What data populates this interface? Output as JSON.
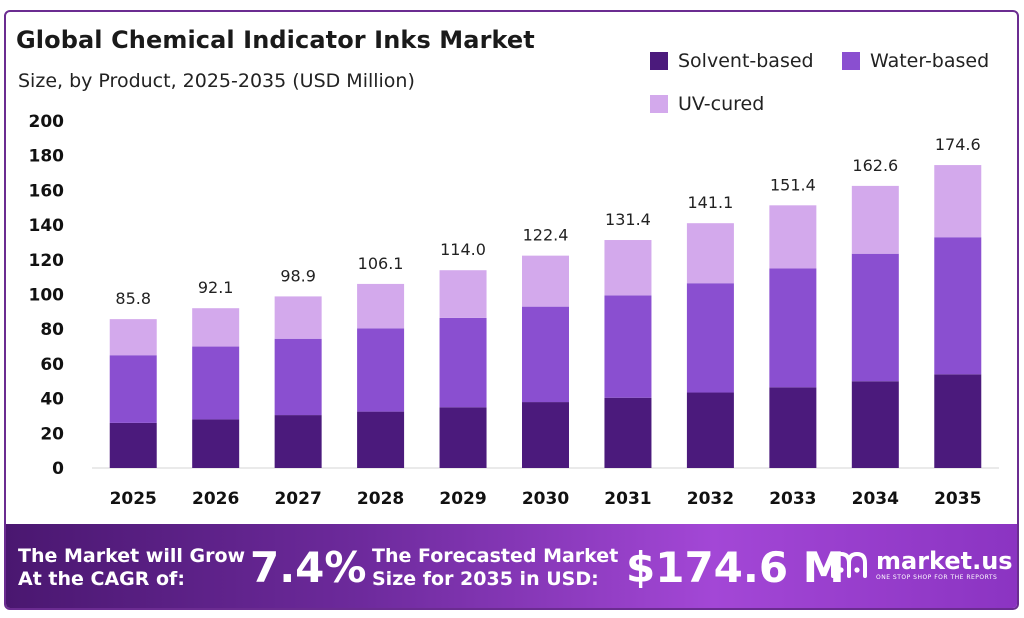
{
  "header": {
    "title": "Global Chemical Indicator Inks Market",
    "subtitle": "Size, by Product, 2025-2035 (USD Million)"
  },
  "legend": [
    {
      "label": "Solvent-based",
      "color": "#4b1a7c"
    },
    {
      "label": "Water-based",
      "color": "#8a4fd0"
    },
    {
      "label": "UV-cured",
      "color": "#d3a9ec"
    }
  ],
  "chart_data": {
    "type": "bar",
    "stacked": true,
    "title": "Global Chemical Indicator Inks Market",
    "subtitle": "Size, by Product, 2025-2035 (USD Million)",
    "categories": [
      "2025",
      "2026",
      "2027",
      "2028",
      "2029",
      "2030",
      "2031",
      "2032",
      "2033",
      "2034",
      "2035"
    ],
    "series": [
      {
        "name": "Solvent-based",
        "color": "#4b1a7c",
        "values": [
          26,
          28,
          30.5,
          32.5,
          35,
          38,
          40.5,
          43.5,
          46.5,
          50,
          54
        ]
      },
      {
        "name": "Water-based",
        "color": "#8a4fd0",
        "values": [
          39,
          42,
          44,
          48,
          51.5,
          55,
          59,
          63,
          68.5,
          73.5,
          79
        ]
      },
      {
        "name": "UV-cured",
        "color": "#d3a9ec",
        "values": [
          20.8,
          22.1,
          24.4,
          25.6,
          27.5,
          29.4,
          31.9,
          34.6,
          36.4,
          39.1,
          41.6
        ]
      }
    ],
    "totals": [
      "85.8",
      "92.1",
      "98.9",
      "106.1",
      "114.0",
      "122.4",
      "131.4",
      "141.1",
      "151.4",
      "162.6",
      "174.6"
    ],
    "yticks": [
      "0",
      "20",
      "40",
      "60",
      "80",
      "100",
      "120",
      "140",
      "160",
      "180",
      "200"
    ],
    "ylim": [
      0,
      200
    ],
    "grid": false,
    "legend_position": "top-right"
  },
  "footer": {
    "cagr_label_line1": "The Market will Grow",
    "cagr_label_line2": "At the CAGR of:",
    "cagr_value": "7.4%",
    "forecast_label_line1": "The Forecasted Market",
    "forecast_label_line2": "Size for 2035 in USD:",
    "forecast_value": "$174.6 M",
    "brand_name": "market.us",
    "brand_tagline": "ONE STOP SHOP FOR THE REPORTS"
  }
}
